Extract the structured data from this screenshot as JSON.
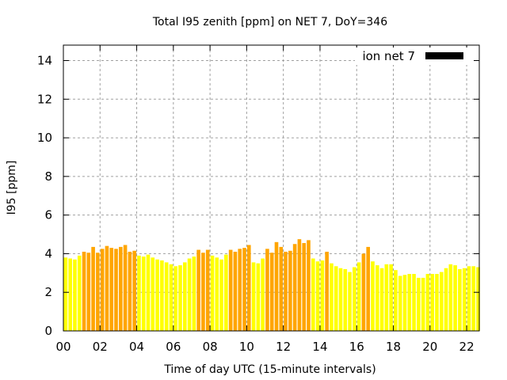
{
  "chart_data": {
    "type": "bar",
    "title": "Total I95 zenith [ppm] on NET 7, DoY=346",
    "xlabel": "Time of day UTC (15-minute intervals)",
    "ylabel": "I95 [ppm]",
    "ylim": [
      0,
      14.8
    ],
    "xlim_hours": [
      0,
      22.75
    ],
    "grid": true,
    "legend": {
      "label": "ion net 7",
      "position": "top-right",
      "color": "#000000"
    },
    "y_ticks": [
      "0",
      "2",
      "4",
      "6",
      "8",
      "10",
      "12",
      "14"
    ],
    "x_ticks": [
      "00",
      "02",
      "04",
      "06",
      "08",
      "10",
      "12",
      "14",
      "16",
      "18",
      "20",
      "22"
    ],
    "interval_minutes": 15,
    "threshold": 4.0,
    "colors": {
      "below_threshold": "#ffff00",
      "above_threshold": "#ffa500",
      "grid": "#a0a0a0",
      "axis": "#000000"
    },
    "values": [
      3.8,
      3.75,
      3.7,
      3.9,
      4.1,
      4.05,
      4.35,
      4.05,
      4.25,
      4.4,
      4.3,
      4.25,
      4.35,
      4.45,
      4.1,
      4.15,
      3.9,
      3.85,
      3.95,
      3.8,
      3.7,
      3.65,
      3.55,
      3.45,
      3.35,
      3.4,
      3.55,
      3.75,
      3.85,
      4.2,
      4.05,
      4.2,
      3.9,
      3.8,
      3.7,
      3.95,
      4.2,
      4.1,
      4.25,
      4.3,
      4.45,
      3.55,
      3.5,
      3.75,
      4.25,
      4.05,
      4.6,
      4.35,
      4.1,
      4.15,
      4.5,
      4.75,
      4.55,
      4.7,
      3.75,
      3.6,
      3.65,
      4.1,
      3.5,
      3.35,
      3.25,
      3.2,
      3.05,
      3.3,
      3.55,
      4.0,
      4.35,
      3.6,
      3.4,
      3.25,
      3.45,
      3.45,
      3.15,
      2.85,
      2.9,
      2.95,
      2.95,
      2.75,
      2.75,
      2.95,
      2.95,
      2.95,
      3.05,
      3.25,
      3.45,
      3.4,
      3.2,
      3.25,
      3.35,
      3.35,
      3.3
    ]
  }
}
